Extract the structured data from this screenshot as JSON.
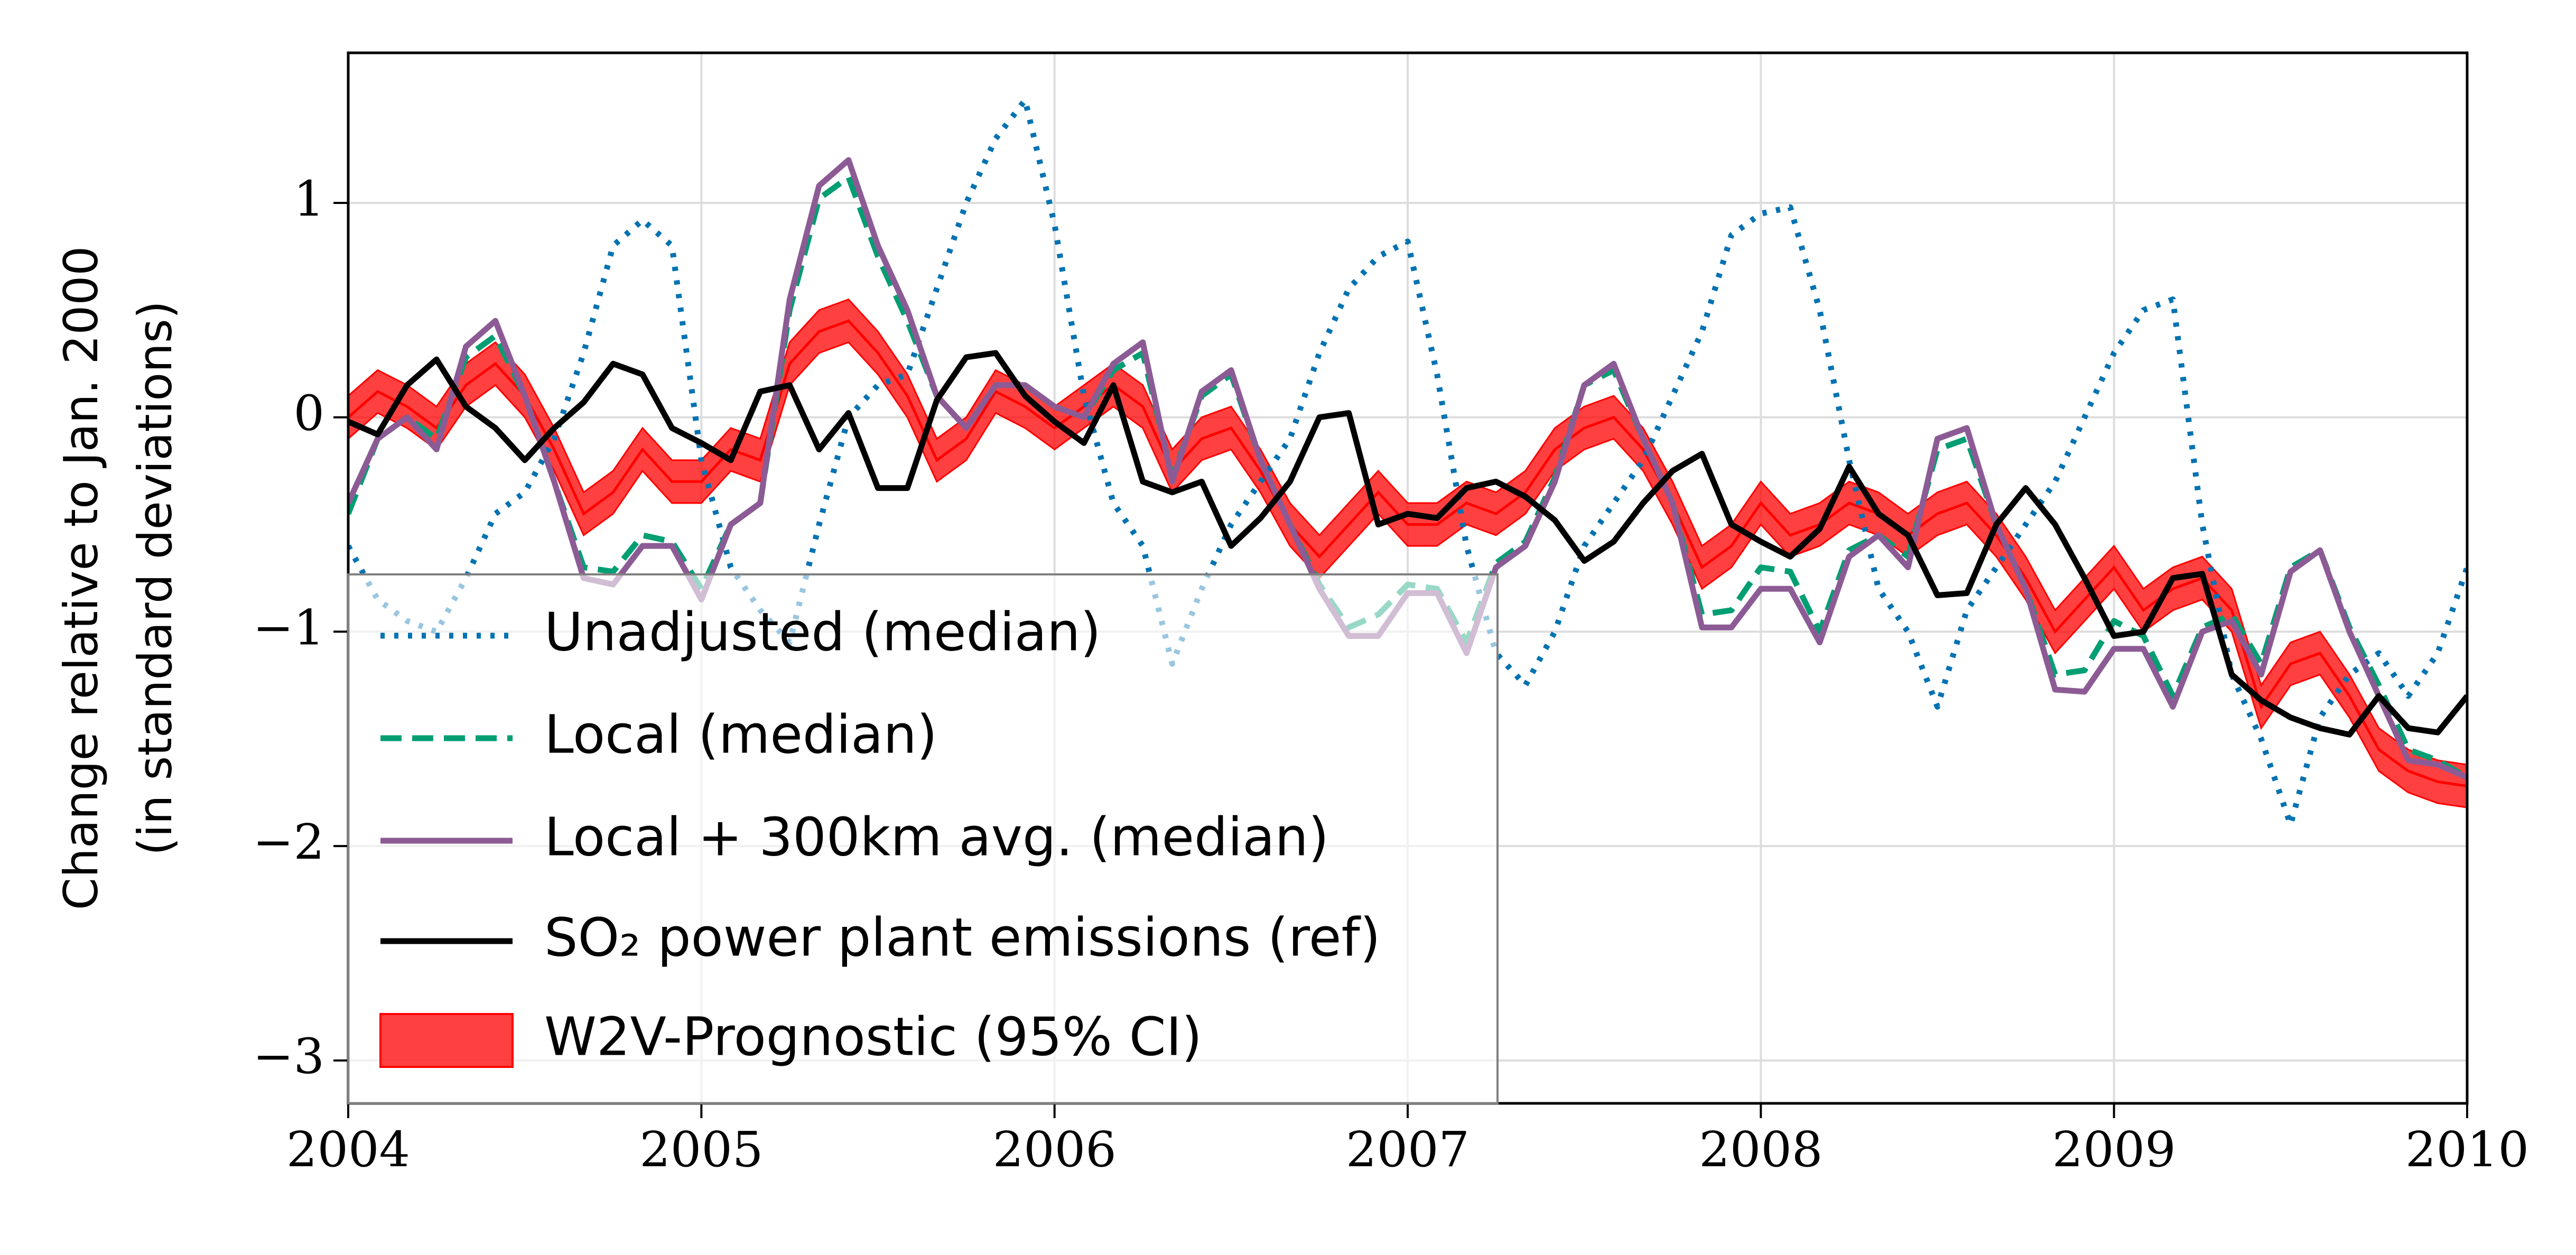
{
  "chart_data": {
    "type": "line",
    "ylabel": [
      "Change relative to Jan. 2000",
      "(in standard deviations)"
    ],
    "xlim": [
      2004,
      2010
    ],
    "xticks": [
      2004,
      2005,
      2006,
      2007,
      2008,
      2009,
      2010
    ],
    "ylim": [
      -3.2,
      1.7
    ],
    "yticks": [
      {
        "value": -3,
        "label": "−3"
      },
      {
        "value": -2,
        "label": "−2"
      },
      {
        "value": -1,
        "label": "−1"
      },
      0,
      1
    ],
    "grid": true,
    "legend": "lower left",
    "x": [
      2004,
      2004.0833,
      2004.1667,
      2004.25,
      2004.3333,
      2004.4167,
      2004.5,
      2004.5833,
      2004.6667,
      2004.75,
      2004.8333,
      2004.9167,
      2005,
      2005.0833,
      2005.1667,
      2005.25,
      2005.3333,
      2005.4167,
      2005.5,
      2005.5833,
      2005.6667,
      2005.75,
      2005.8333,
      2005.9167,
      2006,
      2006.0833,
      2006.1667,
      2006.25,
      2006.3333,
      2006.4167,
      2006.5,
      2006.5833,
      2006.6667,
      2006.75,
      2006.8333,
      2006.9167,
      2007,
      2007.0833,
      2007.1667,
      2007.25,
      2007.3333,
      2007.4167,
      2007.5,
      2007.5833,
      2007.6667,
      2007.75,
      2007.8333,
      2007.9167,
      2008,
      2008.0833,
      2008.1667,
      2008.25,
      2008.3333,
      2008.4167,
      2008.5,
      2008.5833,
      2008.6667,
      2008.75,
      2008.8333,
      2008.9167,
      2009,
      2009.0833,
      2009.1667,
      2009.25,
      2009.3333,
      2009.4167,
      2009.5,
      2009.5833,
      2009.6667,
      2009.75,
      2009.8333,
      2009.9167,
      2010
    ],
    "series": [
      {
        "name": "Unadjusted (median)",
        "color": "#0072b2",
        "style": "dotted",
        "values": [
          -0.6,
          -0.85,
          -0.95,
          -1.0,
          -0.75,
          -0.45,
          -0.35,
          -0.1,
          0.3,
          0.8,
          0.92,
          0.8,
          -0.2,
          -0.7,
          -0.9,
          -1.05,
          -0.5,
          0.0,
          0.15,
          0.2,
          0.6,
          1.0,
          1.3,
          1.48,
          0.9,
          0.1,
          -0.4,
          -0.6,
          -1.15,
          -0.8,
          -0.5,
          -0.3,
          -0.1,
          0.3,
          0.6,
          0.75,
          0.82,
          0.2,
          -0.6,
          -1.1,
          -1.25,
          -1.0,
          -0.6,
          -0.4,
          -0.2,
          0.1,
          0.4,
          0.85,
          0.95,
          0.98,
          0.5,
          -0.2,
          -0.8,
          -1.0,
          -1.35,
          -0.9,
          -0.7,
          -0.5,
          -0.3,
          0.0,
          0.3,
          0.5,
          0.55,
          -0.5,
          -1.2,
          -1.5,
          -1.9,
          -1.4,
          -1.2,
          -1.1,
          -1.3,
          -1.1,
          -0.7
        ]
      },
      {
        "name": "Local (median)",
        "color": "#009e73",
        "style": "dashed",
        "values": [
          -0.45,
          -0.1,
          0.0,
          -0.1,
          0.28,
          0.38,
          0.1,
          -0.3,
          -0.7,
          -0.72,
          -0.55,
          -0.58,
          -0.8,
          -0.5,
          -0.4,
          0.5,
          1.02,
          1.12,
          0.75,
          0.45,
          0.1,
          -0.05,
          0.15,
          0.15,
          0.05,
          0.0,
          0.22,
          0.3,
          -0.28,
          0.1,
          0.2,
          -0.2,
          -0.5,
          -0.78,
          -0.98,
          -0.92,
          -0.78,
          -0.8,
          -1.05,
          -0.68,
          -0.58,
          -0.28,
          0.15,
          0.22,
          -0.1,
          -0.4,
          -0.92,
          -0.9,
          -0.7,
          -0.72,
          -1.0,
          -0.62,
          -0.55,
          -0.65,
          -0.15,
          -0.1,
          -0.5,
          -0.8,
          -1.2,
          -1.18,
          -0.95,
          -1.02,
          -1.3,
          -0.98,
          -0.92,
          -1.15,
          -0.7,
          -0.62,
          -0.98,
          -1.25,
          -1.55,
          -1.6,
          -1.68
        ]
      },
      {
        "name": "Local + 300km avg. (median)",
        "color": "#8c5b95",
        "style": "solid",
        "values": [
          -0.4,
          -0.1,
          0.0,
          -0.15,
          0.33,
          0.45,
          0.1,
          -0.3,
          -0.75,
          -0.78,
          -0.6,
          -0.6,
          -0.85,
          -0.5,
          -0.4,
          0.55,
          1.08,
          1.2,
          0.8,
          0.5,
          0.1,
          -0.05,
          0.15,
          0.15,
          0.05,
          0.0,
          0.25,
          0.35,
          -0.3,
          0.12,
          0.22,
          -0.2,
          -0.5,
          -0.8,
          -1.02,
          -1.02,
          -0.82,
          -0.82,
          -1.1,
          -0.7,
          -0.6,
          -0.3,
          0.15,
          0.25,
          -0.1,
          -0.4,
          -0.98,
          -0.98,
          -0.8,
          -0.8,
          -1.05,
          -0.65,
          -0.55,
          -0.7,
          -0.1,
          -0.05,
          -0.5,
          -0.8,
          -1.27,
          -1.28,
          -1.08,
          -1.08,
          -1.35,
          -1.0,
          -0.95,
          -1.2,
          -0.72,
          -0.62,
          -1.0,
          -1.3,
          -1.6,
          -1.62,
          -1.68
        ]
      },
      {
        "name": "SO₂ power plant emissions (ref)",
        "color": "#000000",
        "style": "solid",
        "values": [
          -0.02,
          -0.08,
          0.15,
          0.27,
          0.05,
          -0.05,
          -0.2,
          -0.05,
          0.07,
          0.25,
          0.2,
          -0.05,
          -0.12,
          -0.2,
          0.12,
          0.15,
          -0.15,
          0.02,
          -0.33,
          -0.33,
          0.08,
          0.28,
          0.3,
          0.1,
          -0.02,
          -0.12,
          0.15,
          -0.3,
          -0.35,
          -0.3,
          -0.6,
          -0.47,
          -0.3,
          0.0,
          0.02,
          -0.5,
          -0.45,
          -0.47,
          -0.33,
          -0.3,
          -0.37,
          -0.48,
          -0.67,
          -0.58,
          -0.4,
          -0.25,
          -0.17,
          -0.5,
          -0.58,
          -0.65,
          -0.52,
          -0.23,
          -0.45,
          -0.55,
          -0.83,
          -0.82,
          -0.5,
          -0.33,
          -0.5,
          -0.75,
          -1.02,
          -1.0,
          -0.75,
          -0.73,
          -1.2,
          -1.32,
          -1.4,
          -1.45,
          -1.48,
          -1.3,
          -1.45,
          -1.47,
          -1.3
        ]
      },
      {
        "name": "W2V-Prognostic (95% CI)",
        "color": "#ff0000",
        "style": "band",
        "values": [
          0.0,
          0.12,
          0.05,
          -0.05,
          0.15,
          0.25,
          0.1,
          -0.15,
          -0.45,
          -0.35,
          -0.15,
          -0.3,
          -0.3,
          -0.15,
          -0.2,
          0.25,
          0.4,
          0.45,
          0.3,
          0.1,
          -0.2,
          -0.1,
          0.12,
          0.05,
          -0.05,
          0.05,
          0.15,
          0.05,
          -0.25,
          -0.1,
          -0.05,
          -0.25,
          -0.5,
          -0.65,
          -0.5,
          -0.35,
          -0.5,
          -0.5,
          -0.4,
          -0.45,
          -0.35,
          -0.15,
          -0.05,
          0.0,
          -0.15,
          -0.4,
          -0.7,
          -0.6,
          -0.4,
          -0.55,
          -0.5,
          -0.4,
          -0.45,
          -0.55,
          -0.45,
          -0.4,
          -0.55,
          -0.75,
          -1.0,
          -0.85,
          -0.7,
          -0.9,
          -0.8,
          -0.75,
          -0.9,
          -1.35,
          -1.15,
          -1.1,
          -1.3,
          -1.55,
          -1.65,
          -1.7,
          -1.72
        ],
        "errors": [
          0.1,
          0.1,
          0.1,
          0.1,
          0.1,
          0.1,
          0.1,
          0.1,
          0.1,
          0.1,
          0.1,
          0.1,
          0.1,
          0.1,
          0.1,
          0.1,
          0.1,
          0.1,
          0.1,
          0.1,
          0.1,
          0.1,
          0.1,
          0.1,
          0.1,
          0.1,
          0.1,
          0.1,
          0.1,
          0.1,
          0.1,
          0.1,
          0.1,
          0.1,
          0.1,
          0.1,
          0.1,
          0.1,
          0.1,
          0.1,
          0.1,
          0.1,
          0.1,
          0.1,
          0.1,
          0.1,
          0.1,
          0.1,
          0.1,
          0.1,
          0.1,
          0.1,
          0.1,
          0.1,
          0.1,
          0.1,
          0.1,
          0.1,
          0.1,
          0.1,
          0.1,
          0.1,
          0.1,
          0.1,
          0.1,
          0.1,
          0.1,
          0.1,
          0.1,
          0.1,
          0.1,
          0.1,
          0.1
        ]
      }
    ]
  }
}
